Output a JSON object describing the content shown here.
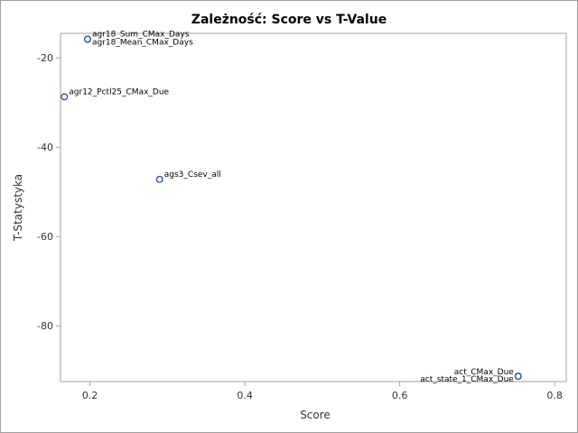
{
  "chart_data": {
    "type": "scatter",
    "title": "Zależność: Score vs T-Value",
    "xlabel": "Score",
    "ylabel": "T-Statystyka",
    "xlim": [
      0.162,
      0.815
    ],
    "ylim": [
      -92.5,
      -14.5
    ],
    "xticks": [
      0.2,
      0.4,
      0.6,
      0.8
    ],
    "xtick_labels": [
      "0.2",
      "0.4",
      "0.6",
      "0.8"
    ],
    "yticks": [
      -20,
      -40,
      -60,
      -80
    ],
    "ytick_labels": [
      "-20",
      "-40",
      "-60",
      "-80"
    ],
    "grid": false,
    "legend": false,
    "marker_color": "#1f4e8c",
    "points": [
      {
        "x": 0.197,
        "y": -15.8,
        "label": "agr18_Sum_CMax_Days"
      },
      {
        "x": 0.197,
        "y": -15.8,
        "label": "agr18_Mean_CMax_Days"
      },
      {
        "x": 0.167,
        "y": -28.7,
        "label": "agr12_Pctl25_CMax_Due"
      },
      {
        "x": 0.29,
        "y": -47.2,
        "label": "ags3_Csev_all"
      },
      {
        "x": 0.753,
        "y": -91.3,
        "label": "act_CMax_Due"
      },
      {
        "x": 0.753,
        "y": -91.3,
        "label": "act_state_1_CMax_Due"
      }
    ]
  }
}
